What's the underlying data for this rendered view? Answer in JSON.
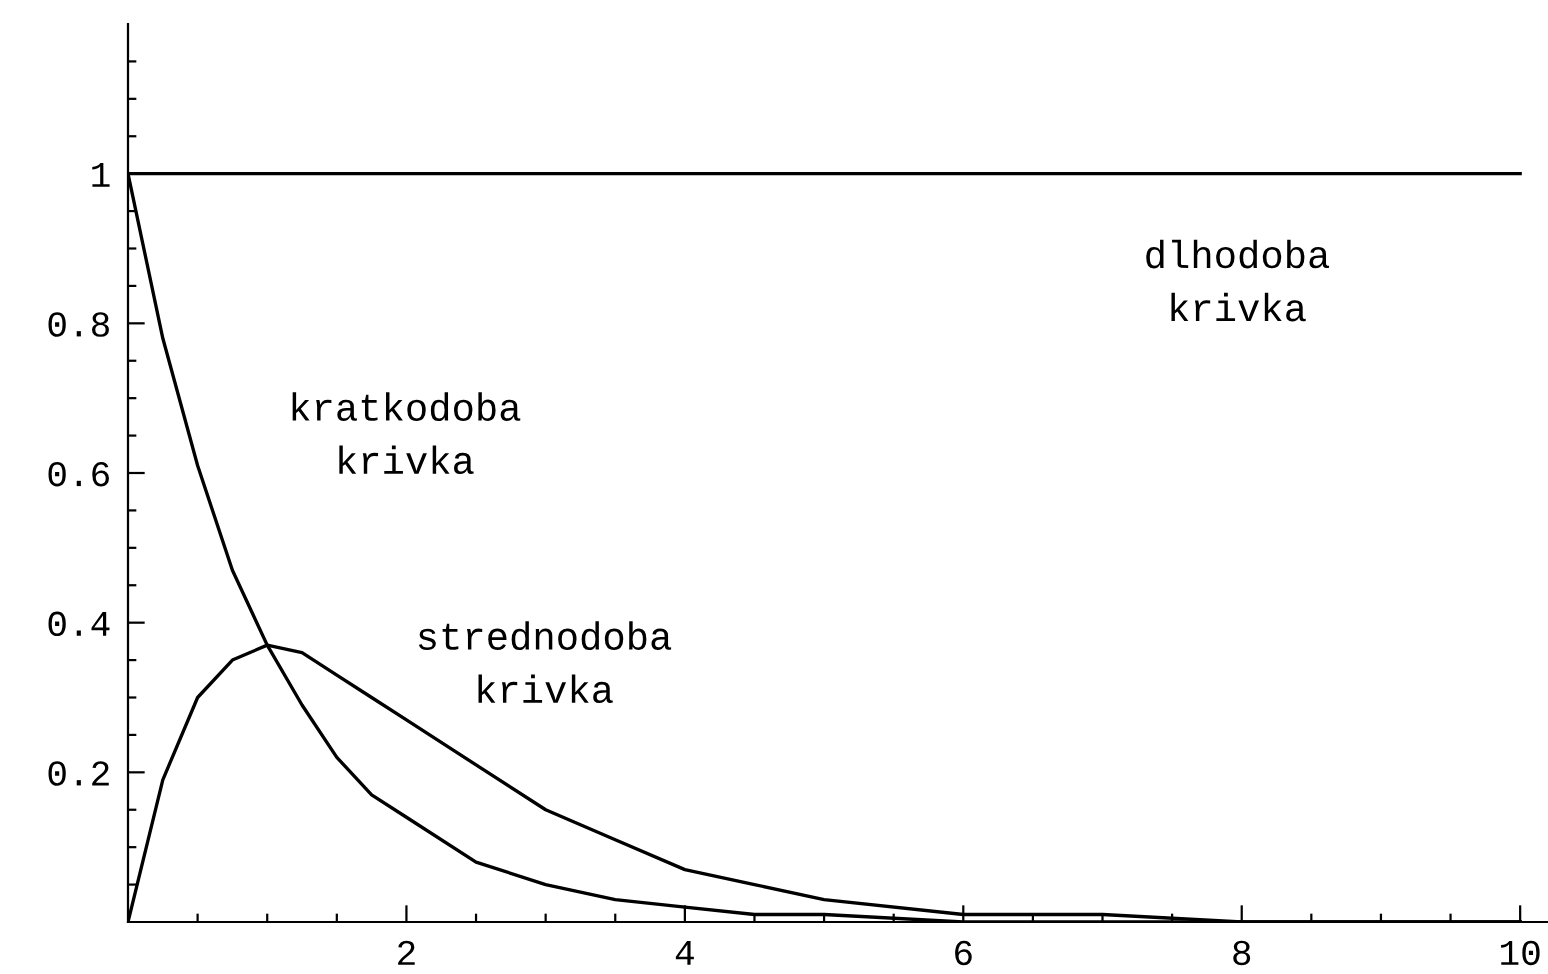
{
  "chart_data": {
    "type": "line",
    "x": [
      0,
      0.25,
      0.5,
      0.75,
      1,
      1.25,
      1.5,
      1.75,
      2,
      2.5,
      3,
      3.5,
      4,
      4.5,
      5,
      6,
      7,
      8,
      9,
      10
    ],
    "series": [
      {
        "color": "#000000",
        "x": [
          0,
          10
        ],
        "values": [
          1,
          1
        ]
      },
      {
        "color": "#000000",
        "values": [
          1,
          0.78,
          0.61,
          0.47,
          0.37,
          0.29,
          0.22,
          0.17,
          0.14,
          0.08,
          0.05,
          0.03,
          0.02,
          0.01,
          0.01,
          0,
          0,
          0,
          0,
          0
        ]
      },
      {
        "color": "#000000",
        "values": [
          0,
          0.19,
          0.3,
          0.35,
          0.37,
          0.36,
          0.33,
          0.3,
          0.27,
          0.21,
          0.15,
          0.11,
          0.07,
          0.05,
          0.03,
          0.01,
          0.01,
          0,
          0,
          0
        ]
      }
    ],
    "xlim": [
      0,
      10.2
    ],
    "ylim": [
      0,
      1.2
    ],
    "xticks": [
      {
        "value": 0.5,
        "label": null
      },
      {
        "value": 1,
        "label": null
      },
      {
        "value": 1.5,
        "label": null
      },
      2,
      {
        "value": 2.5,
        "label": null
      },
      {
        "value": 3,
        "label": null
      },
      {
        "value": 3.5,
        "label": null
      },
      4,
      {
        "value": 4.5,
        "label": null
      },
      {
        "value": 5,
        "label": null
      },
      {
        "value": 5.5,
        "label": null
      },
      6,
      {
        "value": 6.5,
        "label": null
      },
      {
        "value": 7,
        "label": null
      },
      {
        "value": 7.5,
        "label": null
      },
      8,
      {
        "value": 8.5,
        "label": null
      },
      {
        "value": 9,
        "label": null
      },
      {
        "value": 9.5,
        "label": null
      },
      10
    ],
    "yticks": [
      {
        "value": 0.05,
        "label": null
      },
      {
        "value": 0.1,
        "label": null
      },
      {
        "value": 0.15,
        "label": null
      },
      0.2,
      {
        "value": 0.25,
        "label": null
      },
      {
        "value": 0.3,
        "label": null
      },
      {
        "value": 0.35,
        "label": null
      },
      0.4,
      {
        "value": 0.45,
        "label": null
      },
      {
        "value": 0.5,
        "label": null
      },
      {
        "value": 0.55,
        "label": null
      },
      0.6,
      {
        "value": 0.65,
        "label": null
      },
      {
        "value": 0.7,
        "label": null
      },
      {
        "value": 0.75,
        "label": null
      },
      0.8,
      {
        "value": 0.85,
        "label": null
      },
      {
        "value": 0.9,
        "label": null
      },
      {
        "value": 0.95,
        "label": null
      },
      1,
      {
        "value": 1.05,
        "label": null
      },
      {
        "value": 1.1,
        "label": null
      },
      {
        "value": 1.15,
        "label": null
      }
    ],
    "annotations": [
      "kratkodoba\nkrivka",
      "strednodoba\nkrivka",
      "dlhodoba\nkrivka"
    ],
    "grid": false,
    "legend": false,
    "marker": "none",
    "line_style": "solid"
  }
}
